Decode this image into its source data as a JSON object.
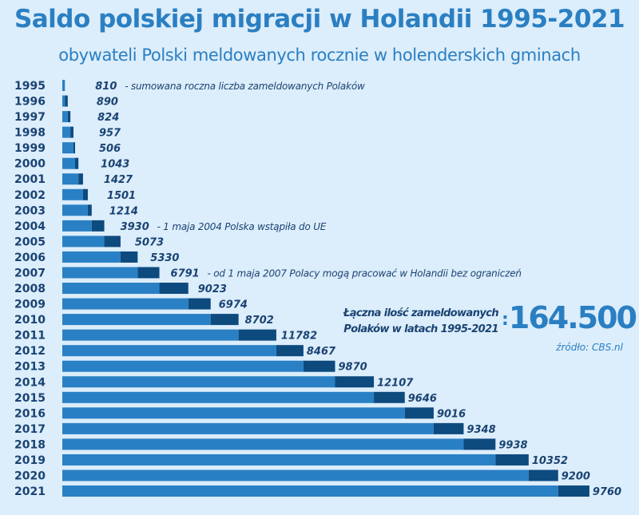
{
  "header": {
    "title": "Saldo polskiej migracji w Holandii 1995-2021",
    "subtitle": "obywateli Polski meldowanych rocznie w holenderskich gminach"
  },
  "summary": {
    "label_line1": "Łączna ilość zameldowanych",
    "label_line2": "Polaków w latach 1995-2021",
    "colon": ":",
    "total": "164.500",
    "source": "źródło: CBS.nl"
  },
  "chart_data": {
    "type": "bar",
    "subtype": "waterfall-horizontal",
    "title": "Saldo polskiej migracji w Holandii 1995-2021",
    "categories": [
      "1995",
      "1996",
      "1997",
      "1998",
      "1999",
      "2000",
      "2001",
      "2002",
      "2003",
      "2004",
      "2005",
      "2006",
      "2007",
      "2008",
      "2009",
      "2010",
      "2011",
      "2012",
      "2013",
      "2014",
      "2015",
      "2016",
      "2017",
      "2018",
      "2019",
      "2020",
      "2021"
    ],
    "values": [
      810,
      890,
      824,
      957,
      506,
      1043,
      1427,
      1501,
      1214,
      3930,
      5073,
      5330,
      6791,
      9023,
      6974,
      8702,
      11782,
      8467,
      9870,
      12107,
      9646,
      9016,
      9348,
      9938,
      10352,
      9200,
      9760
    ],
    "annotations": [
      {
        "category": "1995",
        "text": "-  sumowana roczna liczba zameldowanych Polaków"
      },
      {
        "category": "2004",
        "text": "-  1 maja 2004 Polska wstąpiła do UE"
      },
      {
        "category": "2007",
        "text": "-  od 1 maja 2007 Polacy mogą pracować w Holandii bez ograniczeń"
      }
    ],
    "colors": {
      "cumulative": "#2a80c4",
      "annual": "#0d4a7e",
      "labels": "#1a4372",
      "background": "#dcedfb"
    },
    "grid": false
  }
}
